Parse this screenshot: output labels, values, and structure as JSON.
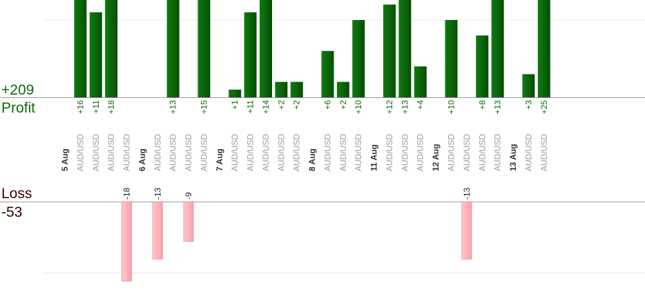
{
  "summary": {
    "profit_total": "+209",
    "profit_label": "Profit",
    "loss_label": "Loss",
    "loss_total": "-53"
  },
  "colors": {
    "profit_bar": "#0a6b0a",
    "loss_bar": "#ffb3b8",
    "profit_text": "#0a6b0a",
    "loss_text": "#3a0000",
    "date_text": "#333333",
    "pair_text": "#9a9a9a"
  },
  "chart_data": {
    "type": "bar",
    "title": "",
    "xlabel": "",
    "ylabel": "",
    "grid": true,
    "slots": [
      {
        "date": "5 Aug"
      },
      {
        "pair": "AUD/USD",
        "value": 16,
        "label": "+16"
      },
      {
        "pair": "AUD/USD",
        "value": 11,
        "label": "+11"
      },
      {
        "pair": "AUD/USD",
        "value": 18,
        "label": "+18"
      },
      {
        "pair": "AUD/USD",
        "value": -18,
        "label": "-18"
      },
      {
        "date": "6 Aug"
      },
      {
        "pair": "AUD/USD",
        "value": -13,
        "label": "-13"
      },
      {
        "pair": "AUD/USD",
        "value": 13,
        "label": "+13"
      },
      {
        "pair": "AUD/USD",
        "value": -9,
        "label": "-9"
      },
      {
        "pair": "AUD/USD",
        "value": 15,
        "label": "+15"
      },
      {
        "date": "7 Aug"
      },
      {
        "pair": "AUD/USD",
        "value": 1,
        "label": "+1"
      },
      {
        "pair": "AUD/USD",
        "value": 11,
        "label": "+11"
      },
      {
        "pair": "AUD/USD",
        "value": 14,
        "label": "+14"
      },
      {
        "pair": "AUD/USD",
        "value": 2,
        "label": "+2"
      },
      {
        "pair": "AUD/USD",
        "value": 2,
        "label": "+2"
      },
      {
        "date": "8 Aug"
      },
      {
        "pair": "AUD/USD",
        "value": 6,
        "label": "+6"
      },
      {
        "pair": "AUD/USD",
        "value": 2,
        "label": "+2"
      },
      {
        "pair": "AUD/USD",
        "value": 10,
        "label": "+10"
      },
      {
        "date": "11 Aug"
      },
      {
        "pair": "AUD/USD",
        "value": 12,
        "label": "+12"
      },
      {
        "pair": "AUD/USD",
        "value": 13,
        "label": "+13"
      },
      {
        "pair": "AUD/USD",
        "value": 4,
        "label": "+4"
      },
      {
        "date": "12 Aug"
      },
      {
        "pair": "AUD/USD",
        "value": 10,
        "label": "+10"
      },
      {
        "pair": "AUD/USD",
        "value": -13,
        "label": "-13"
      },
      {
        "pair": "AUD/USD",
        "value": 8,
        "label": "+8"
      },
      {
        "pair": "AUD/USD",
        "value": 13,
        "label": "+13"
      },
      {
        "date": "13 Aug"
      },
      {
        "pair": "AUD/USD",
        "value": 3,
        "label": "+3"
      },
      {
        "pair": "AUD/USD",
        "value": 25,
        "label": "+25"
      }
    ]
  }
}
